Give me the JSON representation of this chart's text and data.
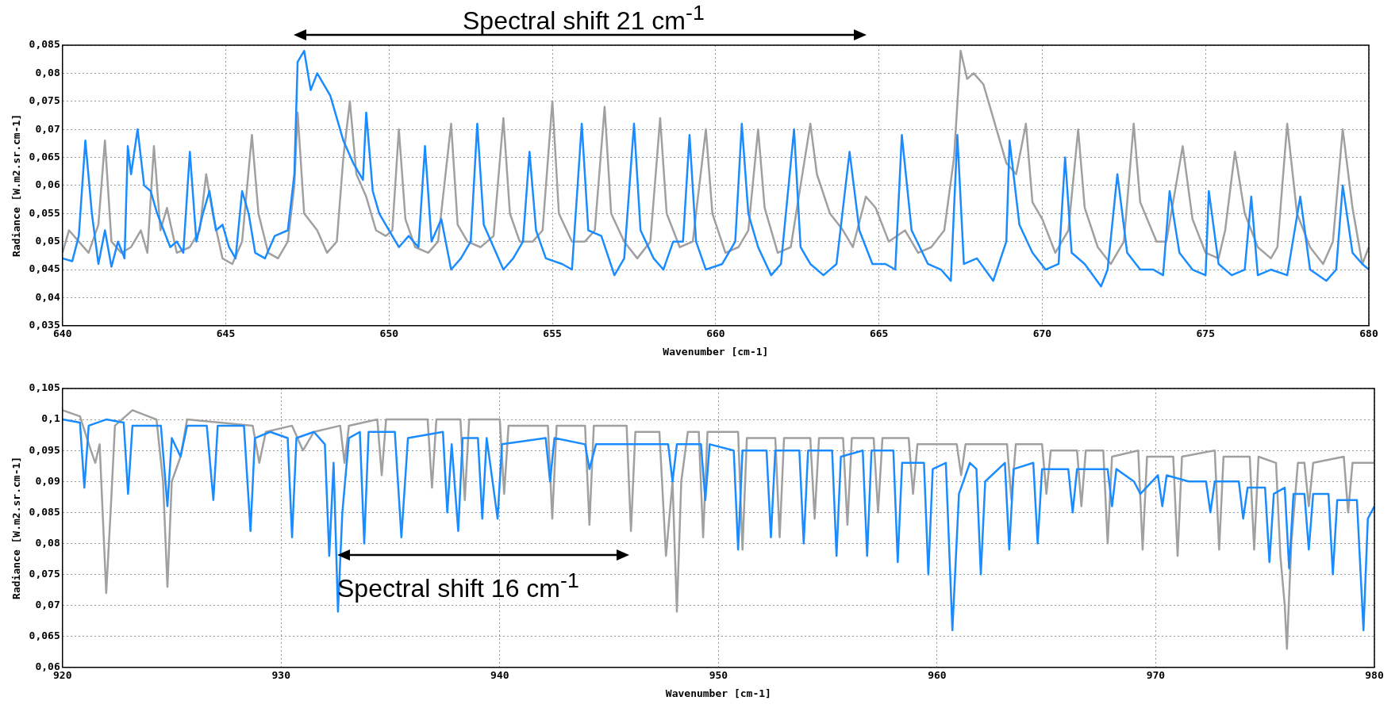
{
  "chart_data": [
    {
      "type": "line",
      "xlabel": "Wavenumber [cm-1]",
      "ylabel": "Radiance [W.m2.sr.cm-1]",
      "xlim": [
        640,
        680
      ],
      "xticks": [
        640,
        645,
        650,
        655,
        660,
        665,
        670,
        675,
        680
      ],
      "ylim": [
        0.035,
        0.085
      ],
      "yticks": [
        {
          "value": 0.035,
          "label": "0,035"
        },
        {
          "value": 0.04,
          "label": "0,04"
        },
        {
          "value": 0.045,
          "label": "0,045"
        },
        {
          "value": 0.05,
          "label": "0,05"
        },
        {
          "value": 0.055,
          "label": "0,055"
        },
        {
          "value": 0.06,
          "label": "0,06"
        },
        {
          "value": 0.065,
          "label": "0,065"
        },
        {
          "value": 0.07,
          "label": "0,07"
        },
        {
          "value": 0.075,
          "label": "0,075"
        },
        {
          "value": 0.08,
          "label": "0,08"
        },
        {
          "value": 0.085,
          "label": "0,085"
        }
      ],
      "grid": true,
      "annotations": [
        "Spectral shift 21 cm$^{-1}$"
      ],
      "series": [
        {
          "color": "#a0a0a0",
          "x": [
            640,
            640.2,
            640.5,
            640.8,
            641.1,
            641.3,
            641.5,
            641.8,
            642.1,
            642.4,
            642.6,
            642.8,
            643,
            643.2,
            643.5,
            643.9,
            644.2,
            644.4,
            644.6,
            644.9,
            645.2,
            645.5,
            645.8,
            646,
            646.3,
            646.6,
            646.9,
            647.1,
            647.2,
            647.4,
            647.8,
            648.1,
            648.4,
            648.6,
            648.8,
            649,
            649.3,
            649.6,
            649.9,
            650.1,
            650.3,
            650.5,
            650.8,
            651.2,
            651.5,
            651.9,
            652.1,
            652.4,
            652.8,
            653.2,
            653.5,
            653.7,
            654,
            654.4,
            654.7,
            655,
            655.2,
            655.6,
            656,
            656.3,
            656.6,
            656.8,
            657.2,
            657.6,
            658,
            658.3,
            658.5,
            658.9,
            659.3,
            659.7,
            659.9,
            660.3,
            660.7,
            661,
            661.3,
            661.5,
            661.9,
            662.3,
            662.6,
            662.9,
            663.1,
            663.5,
            663.9,
            664.2,
            664.6,
            664.9,
            665.3,
            665.8,
            666.2,
            666.6,
            667,
            667.3,
            667.5,
            667.7,
            667.9,
            668.2,
            668.6,
            668.9,
            669.2,
            669.5,
            669.7,
            670,
            670.4,
            670.8,
            671.1,
            671.3,
            671.7,
            672.1,
            672.5,
            672.8,
            673,
            673.5,
            673.8,
            674.3,
            674.6,
            675,
            675.4,
            675.6,
            675.9,
            676.2,
            676.6,
            677,
            677.2,
            677.5,
            677.8,
            678.2,
            678.6,
            678.9,
            679.2,
            679.5,
            679.8,
            680
          ],
          "values": [
            0.048,
            0.052,
            0.05,
            0.048,
            0.053,
            0.068,
            0.05,
            0.048,
            0.049,
            0.052,
            0.048,
            0.067,
            0.052,
            0.056,
            0.048,
            0.049,
            0.052,
            0.062,
            0.055,
            0.047,
            0.046,
            0.05,
            0.069,
            0.055,
            0.048,
            0.047,
            0.05,
            0.06,
            0.073,
            0.055,
            0.052,
            0.048,
            0.05,
            0.065,
            0.075,
            0.062,
            0.058,
            0.052,
            0.051,
            0.052,
            0.07,
            0.054,
            0.049,
            0.048,
            0.05,
            0.071,
            0.053,
            0.05,
            0.049,
            0.051,
            0.072,
            0.055,
            0.05,
            0.05,
            0.052,
            0.075,
            0.055,
            0.05,
            0.05,
            0.052,
            0.074,
            0.055,
            0.05,
            0.047,
            0.05,
            0.072,
            0.055,
            0.049,
            0.05,
            0.07,
            0.055,
            0.048,
            0.049,
            0.052,
            0.07,
            0.056,
            0.048,
            0.049,
            0.06,
            0.071,
            0.062,
            0.055,
            0.052,
            0.049,
            0.058,
            0.056,
            0.05,
            0.052,
            0.048,
            0.049,
            0.052,
            0.065,
            0.084,
            0.079,
            0.08,
            0.078,
            0.07,
            0.064,
            0.062,
            0.071,
            0.057,
            0.054,
            0.048,
            0.052,
            0.07,
            0.056,
            0.049,
            0.046,
            0.05,
            0.071,
            0.057,
            0.05,
            0.05,
            0.067,
            0.054,
            0.048,
            0.047,
            0.052,
            0.066,
            0.055,
            0.049,
            0.047,
            0.049,
            0.071,
            0.055,
            0.049,
            0.046,
            0.05,
            0.07,
            0.056,
            0.046,
            0.049
          ]
        },
        {
          "color": "#1a8cff",
          "x": [
            640,
            640.3,
            640.5,
            640.7,
            640.9,
            641.1,
            641.3,
            641.5,
            641.7,
            641.9,
            642,
            642.1,
            642.3,
            642.5,
            642.7,
            642.9,
            643.1,
            643.3,
            643.5,
            643.7,
            643.9,
            644.1,
            644.3,
            644.5,
            644.7,
            644.9,
            645.1,
            645.3,
            645.5,
            645.7,
            645.9,
            646.2,
            646.5,
            646.9,
            647.1,
            647.2,
            647.4,
            647.6,
            647.8,
            648.2,
            648.6,
            648.9,
            649.2,
            649.3,
            649.5,
            649.7,
            650,
            650.3,
            650.6,
            650.9,
            651.1,
            651.3,
            651.6,
            651.9,
            652.2,
            652.5,
            652.7,
            652.9,
            653.2,
            653.5,
            653.8,
            654.1,
            654.3,
            654.5,
            654.8,
            655.3,
            655.6,
            655.9,
            656.1,
            656.5,
            656.9,
            657.2,
            657.5,
            657.7,
            658.1,
            658.4,
            658.7,
            659,
            659.2,
            659.4,
            659.7,
            660.2,
            660.6,
            660.8,
            661,
            661.3,
            661.7,
            662,
            662.4,
            662.6,
            662.9,
            663.3,
            663.7,
            664.1,
            664.4,
            664.8,
            665.2,
            665.5,
            665.7,
            666,
            666.5,
            666.9,
            667.2,
            667.4,
            667.6,
            668,
            668.5,
            668.9,
            669,
            669.3,
            669.7,
            670.1,
            670.5,
            670.7,
            670.9,
            671.3,
            671.8,
            672,
            672.3,
            672.6,
            673,
            673.4,
            673.7,
            673.9,
            674.2,
            674.6,
            675,
            675.1,
            675.4,
            675.8,
            676.2,
            676.4,
            676.6,
            677,
            677.5,
            677.9,
            678.2,
            678.7,
            679,
            679.2,
            679.5,
            679.8,
            680
          ],
          "values": [
            0.047,
            0.0465,
            0.051,
            0.068,
            0.055,
            0.046,
            0.052,
            0.0455,
            0.05,
            0.047,
            0.067,
            0.062,
            0.07,
            0.06,
            0.059,
            0.055,
            0.052,
            0.049,
            0.05,
            0.048,
            0.066,
            0.05,
            0.055,
            0.059,
            0.052,
            0.053,
            0.049,
            0.047,
            0.059,
            0.055,
            0.048,
            0.047,
            0.051,
            0.052,
            0.062,
            0.082,
            0.084,
            0.077,
            0.08,
            0.076,
            0.068,
            0.064,
            0.061,
            0.073,
            0.059,
            0.055,
            0.052,
            0.049,
            0.051,
            0.049,
            0.067,
            0.05,
            0.054,
            0.045,
            0.047,
            0.05,
            0.071,
            0.053,
            0.049,
            0.045,
            0.047,
            0.05,
            0.066,
            0.052,
            0.047,
            0.046,
            0.045,
            0.071,
            0.052,
            0.051,
            0.044,
            0.047,
            0.071,
            0.052,
            0.047,
            0.045,
            0.05,
            0.05,
            0.069,
            0.05,
            0.045,
            0.046,
            0.05,
            0.071,
            0.055,
            0.049,
            0.044,
            0.046,
            0.07,
            0.049,
            0.046,
            0.044,
            0.046,
            0.066,
            0.052,
            0.046,
            0.046,
            0.045,
            0.069,
            0.052,
            0.046,
            0.045,
            0.043,
            0.069,
            0.046,
            0.047,
            0.043,
            0.05,
            0.068,
            0.053,
            0.048,
            0.045,
            0.046,
            0.065,
            0.048,
            0.046,
            0.042,
            0.045,
            0.062,
            0.048,
            0.045,
            0.045,
            0.044,
            0.059,
            0.048,
            0.045,
            0.044,
            0.059,
            0.046,
            0.044,
            0.045,
            0.058,
            0.044,
            0.045,
            0.044,
            0.058,
            0.045,
            0.043,
            0.045,
            0.06,
            0.048,
            0.046,
            0.045
          ]
        }
      ]
    },
    {
      "type": "line",
      "xlabel": "Wavenumber [cm-1]",
      "ylabel": "Radiance [W.m2.sr.cm-1]",
      "xlim": [
        920,
        980
      ],
      "xticks": [
        920,
        930,
        940,
        950,
        960,
        970,
        980
      ],
      "ylim": [
        0.06,
        0.105
      ],
      "yticks": [
        {
          "value": 0.06,
          "label": "0,06"
        },
        {
          "value": 0.065,
          "label": "0,065"
        },
        {
          "value": 0.07,
          "label": "0,07"
        },
        {
          "value": 0.075,
          "label": "0,075"
        },
        {
          "value": 0.08,
          "label": "0,08"
        },
        {
          "value": 0.085,
          "label": "0,085"
        },
        {
          "value": 0.09,
          "label": "0,09"
        },
        {
          "value": 0.095,
          "label": "0,095"
        },
        {
          "value": 0.1,
          "label": "0,1"
        },
        {
          "value": 0.105,
          "label": "0,105"
        }
      ],
      "grid": true,
      "annotations": [
        "Spectral shift 16 cm$^{-1}$"
      ],
      "series": [
        {
          "color": "#a0a0a0",
          "x": [
            920,
            920.8,
            921.3,
            921.5,
            921.7,
            921.9,
            922,
            922.2,
            922.4,
            923.2,
            924.3,
            924.6,
            924.8,
            925,
            925.4,
            925.7,
            928.7,
            929,
            929.3,
            930.5,
            931,
            931.5,
            932.7,
            932.9,
            933.1,
            934.4,
            934.6,
            934.8,
            936.7,
            936.9,
            937.1,
            938.2,
            938.4,
            938.6,
            940,
            940.2,
            940.4,
            942.2,
            942.4,
            942.6,
            943.9,
            944.1,
            944.3,
            945.8,
            946,
            946.2,
            947.3,
            947.6,
            947.9,
            948.1,
            948.3,
            948.6,
            949.1,
            949.3,
            949.5,
            950.9,
            951.1,
            951.3,
            952.6,
            952.8,
            953,
            954.2,
            954.4,
            954.6,
            955.7,
            955.9,
            956.1,
            957.1,
            957.3,
            957.5,
            958.7,
            958.9,
            959.1,
            960.9,
            961.1,
            961.3,
            963.2,
            963.4,
            963.6,
            964.8,
            965,
            965.2,
            966.4,
            966.6,
            966.8,
            967.6,
            967.8,
            968,
            969.2,
            969.4,
            969.6,
            970.8,
            971,
            971.2,
            972.7,
            972.9,
            973.1,
            974.3,
            974.5,
            974.7,
            975.5,
            975.7,
            975.9,
            976,
            976.2,
            976.5,
            976.8,
            977,
            977.2,
            978.6,
            978.8,
            979,
            980
          ],
          "values": [
            0.1015,
            0.1005,
            0.095,
            0.093,
            0.096,
            0.08,
            0.072,
            0.085,
            0.099,
            0.1015,
            0.1,
            0.09,
            0.073,
            0.09,
            0.094,
            0.1,
            0.099,
            0.093,
            0.098,
            0.099,
            0.095,
            0.098,
            0.099,
            0.093,
            0.099,
            0.1,
            0.091,
            0.1,
            0.1,
            0.089,
            0.1,
            0.1,
            0.087,
            0.1,
            0.1,
            0.088,
            0.099,
            0.099,
            0.084,
            0.099,
            0.099,
            0.083,
            0.099,
            0.099,
            0.082,
            0.098,
            0.098,
            0.078,
            0.09,
            0.069,
            0.09,
            0.098,
            0.098,
            0.081,
            0.098,
            0.098,
            0.079,
            0.097,
            0.097,
            0.081,
            0.097,
            0.097,
            0.084,
            0.097,
            0.097,
            0.083,
            0.097,
            0.097,
            0.085,
            0.097,
            0.097,
            0.088,
            0.096,
            0.096,
            0.091,
            0.096,
            0.096,
            0.087,
            0.096,
            0.096,
            0.088,
            0.095,
            0.095,
            0.086,
            0.095,
            0.095,
            0.08,
            0.094,
            0.095,
            0.079,
            0.094,
            0.094,
            0.078,
            0.094,
            0.095,
            0.079,
            0.094,
            0.094,
            0.079,
            0.094,
            0.093,
            0.078,
            0.07,
            0.063,
            0.08,
            0.093,
            0.093,
            0.086,
            0.093,
            0.094,
            0.085,
            0.093,
            0.093
          ]
        },
        {
          "color": "#1a8cff",
          "x": [
            920,
            920.8,
            921,
            921.2,
            922,
            922.8,
            923,
            923.2,
            924.5,
            924.8,
            925,
            925.4,
            925.7,
            926.6,
            926.9,
            927.1,
            928.3,
            928.6,
            928.8,
            929.5,
            930.3,
            930.5,
            930.7,
            931.5,
            932,
            932.2,
            932.4,
            932.6,
            932.8,
            933.1,
            933.6,
            933.8,
            934,
            935.2,
            935.5,
            935.8,
            937.4,
            937.6,
            937.8,
            938.1,
            938.3,
            939,
            939.2,
            939.4,
            939.9,
            940.1,
            942.1,
            942.3,
            942.5,
            943.9,
            944.1,
            944.4,
            947.7,
            947.9,
            948.1,
            949.2,
            949.4,
            949.6,
            950.7,
            950.9,
            951.1,
            952.2,
            952.4,
            952.6,
            953.7,
            953.9,
            954.1,
            955.2,
            955.4,
            955.6,
            956.6,
            956.8,
            957,
            958,
            958.2,
            958.4,
            959.4,
            959.6,
            959.8,
            960.4,
            960.7,
            961,
            961.5,
            961.8,
            962,
            962.2,
            963.1,
            963.3,
            963.5,
            964.4,
            964.6,
            964.8,
            966,
            966.2,
            966.4,
            967.8,
            968,
            968.2,
            969,
            969.3,
            970.1,
            970.3,
            970.5,
            971.5,
            972.3,
            972.5,
            972.7,
            973.8,
            974,
            974.2,
            975,
            975.2,
            975.4,
            975.9,
            976.1,
            976.3,
            976.8,
            977,
            977.2,
            977.9,
            978.1,
            978.3,
            979.2,
            979.5,
            979.7,
            980
          ],
          "values": [
            0.1,
            0.0995,
            0.089,
            0.099,
            0.1,
            0.0995,
            0.088,
            0.099,
            0.099,
            0.086,
            0.097,
            0.094,
            0.099,
            0.099,
            0.087,
            0.099,
            0.099,
            0.082,
            0.097,
            0.098,
            0.097,
            0.081,
            0.097,
            0.098,
            0.096,
            0.078,
            0.093,
            0.069,
            0.085,
            0.097,
            0.098,
            0.08,
            0.098,
            0.098,
            0.081,
            0.097,
            0.098,
            0.085,
            0.096,
            0.082,
            0.097,
            0.097,
            0.084,
            0.097,
            0.084,
            0.096,
            0.097,
            0.09,
            0.097,
            0.096,
            0.092,
            0.096,
            0.096,
            0.09,
            0.096,
            0.096,
            0.087,
            0.096,
            0.095,
            0.079,
            0.095,
            0.095,
            0.081,
            0.095,
            0.095,
            0.08,
            0.095,
            0.095,
            0.078,
            0.094,
            0.095,
            0.078,
            0.095,
            0.095,
            0.077,
            0.093,
            0.093,
            0.075,
            0.092,
            0.093,
            0.066,
            0.088,
            0.093,
            0.092,
            0.075,
            0.09,
            0.093,
            0.079,
            0.092,
            0.093,
            0.08,
            0.092,
            0.092,
            0.085,
            0.092,
            0.092,
            0.086,
            0.092,
            0.09,
            0.088,
            0.091,
            0.086,
            0.091,
            0.09,
            0.09,
            0.085,
            0.09,
            0.09,
            0.084,
            0.089,
            0.089,
            0.077,
            0.088,
            0.089,
            0.076,
            0.088,
            0.088,
            0.079,
            0.088,
            0.088,
            0.075,
            0.087,
            0.087,
            0.066,
            0.084,
            0.086
          ]
        }
      ]
    }
  ]
}
